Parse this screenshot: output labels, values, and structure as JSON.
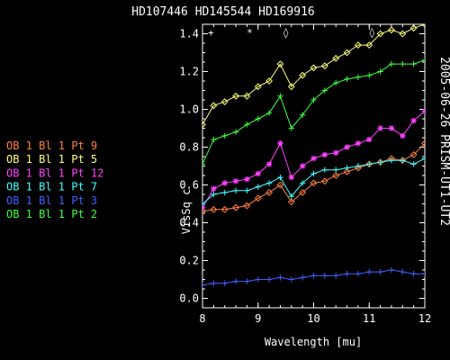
{
  "chart_data": {
    "type": "line",
    "title": "HD107446 HD145544 HD169916",
    "side_label": "2005-06-26 PRISM-UT1-UT2",
    "xlabel": "Wavelength [mu]",
    "ylabel": "VisSq c",
    "xlim": [
      8,
      12
    ],
    "ylim": [
      -0.05,
      1.45
    ],
    "xticks": [
      "8",
      "9",
      "10",
      "11",
      "12"
    ],
    "yticks": [
      "0.0",
      "0.2",
      "0.4",
      "0.6",
      "0.8",
      "1.0",
      "1.2",
      "1.4"
    ],
    "x": [
      8.0,
      8.2,
      8.4,
      8.6,
      8.8,
      9.0,
      9.2,
      9.4,
      9.6,
      9.8,
      10.0,
      10.2,
      10.4,
      10.6,
      10.8,
      11.0,
      11.2,
      11.4,
      11.6,
      11.8,
      12.0
    ],
    "series": [
      {
        "name": "OB 1 Bl 1 Pt 9",
        "color": "#ff8040",
        "marker": "diamond",
        "values": [
          0.46,
          0.47,
          0.47,
          0.48,
          0.49,
          0.53,
          0.56,
          0.6,
          0.51,
          0.56,
          0.61,
          0.62,
          0.65,
          0.67,
          0.69,
          0.71,
          0.72,
          0.74,
          0.73,
          0.76,
          0.82
        ]
      },
      {
        "name": "OB 1 Bl 1 Pt 5",
        "color": "#ffff80",
        "marker": "diamond",
        "values": [
          0.92,
          1.02,
          1.04,
          1.07,
          1.07,
          1.12,
          1.15,
          1.24,
          1.12,
          1.18,
          1.22,
          1.23,
          1.27,
          1.3,
          1.34,
          1.34,
          1.4,
          1.42,
          1.4,
          1.43,
          1.45
        ]
      },
      {
        "name": "OB 1 Bl 1 Pt 12",
        "color": "#ff40ff",
        "marker": "asterisk",
        "values": [
          0.48,
          0.58,
          0.61,
          0.62,
          0.63,
          0.66,
          0.71,
          0.82,
          0.64,
          0.7,
          0.74,
          0.76,
          0.77,
          0.8,
          0.82,
          0.84,
          0.9,
          0.9,
          0.86,
          0.94,
          0.99
        ]
      },
      {
        "name": "OB 1 Bl 1 Pt 7",
        "color": "#40ffff",
        "marker": "plus",
        "values": [
          0.5,
          0.55,
          0.56,
          0.57,
          0.57,
          0.59,
          0.61,
          0.64,
          0.54,
          0.61,
          0.66,
          0.68,
          0.68,
          0.69,
          0.7,
          0.71,
          0.72,
          0.73,
          0.73,
          0.71,
          0.74
        ]
      },
      {
        "name": "OB 1 Bl 1 Pt 3",
        "color": "#4060ff",
        "marker": "plus",
        "values": [
          0.07,
          0.08,
          0.08,
          0.09,
          0.09,
          0.1,
          0.1,
          0.11,
          0.1,
          0.11,
          0.12,
          0.12,
          0.12,
          0.13,
          0.13,
          0.14,
          0.14,
          0.15,
          0.14,
          0.13,
          0.13
        ]
      },
      {
        "name": "OB 1 Bl 1 Pt 2",
        "color": "#40ff40",
        "marker": "plus",
        "values": [
          0.71,
          0.84,
          0.86,
          0.88,
          0.92,
          0.95,
          0.98,
          1.07,
          0.9,
          0.97,
          1.05,
          1.1,
          1.14,
          1.16,
          1.17,
          1.18,
          1.2,
          1.24,
          1.24,
          1.24,
          1.26
        ]
      }
    ],
    "top_markers": [
      {
        "symbol": "+",
        "x": 8.15,
        "color": "#ffffff"
      },
      {
        "symbol": "*",
        "x": 8.85,
        "color": "#ffffff"
      },
      {
        "symbol": "◊",
        "x": 9.5,
        "color": "#ffffff"
      },
      {
        "symbol": "◊",
        "x": 11.05,
        "color": "#ffffff"
      }
    ],
    "legend_placement": "left",
    "axis_color": "#ffffff",
    "background": "#000000"
  }
}
